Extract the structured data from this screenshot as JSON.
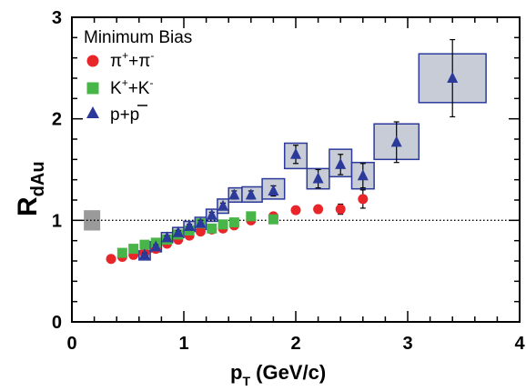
{
  "chart_data": {
    "type": "scatter",
    "legend_title": "Minimum Bias",
    "xlabel_main": "p",
    "xlabel_sub": "T",
    "xlabel_units": " (GeV/c)",
    "ylabel_main": "R",
    "ylabel_sub": "dAu",
    "xlim": [
      0,
      4
    ],
    "ylim": [
      0,
      3
    ],
    "x_ticks": [
      "0",
      "1",
      "2",
      "3",
      "4"
    ],
    "y_ticks": [
      "0",
      "1",
      "2",
      "3"
    ],
    "reference_line_y": 1,
    "normalization_box": {
      "x": 0.18,
      "y": 1.0,
      "half_height": 0.1
    },
    "series": [
      {
        "name": "π⁺+π⁻",
        "legend_base": "π",
        "legend_sup1": "+",
        "legend_mid": "+π",
        "legend_sup2": "-",
        "marker": "circle",
        "color": "#e8262a",
        "points": [
          {
            "x": 0.35,
            "y": 0.62
          },
          {
            "x": 0.45,
            "y": 0.64
          },
          {
            "x": 0.55,
            "y": 0.66
          },
          {
            "x": 0.65,
            "y": 0.68
          },
          {
            "x": 0.75,
            "y": 0.72
          },
          {
            "x": 0.85,
            "y": 0.77
          },
          {
            "x": 0.95,
            "y": 0.81
          },
          {
            "x": 1.05,
            "y": 0.85
          },
          {
            "x": 1.15,
            "y": 0.89
          },
          {
            "x": 1.25,
            "y": 0.91
          },
          {
            "x": 1.35,
            "y": 0.92
          },
          {
            "x": 1.45,
            "y": 0.95
          },
          {
            "x": 1.6,
            "y": 1.0
          },
          {
            "x": 1.8,
            "y": 1.04
          },
          {
            "x": 2.0,
            "y": 1.1
          },
          {
            "x": 2.2,
            "y": 1.11
          },
          {
            "x": 2.4,
            "y": 1.11,
            "err": 0.05
          },
          {
            "x": 2.6,
            "y": 1.21,
            "err": 0.09
          }
        ]
      },
      {
        "name": "K⁺+K⁻",
        "legend_base": "K",
        "legend_sup1": "+",
        "legend_mid": "+K",
        "legend_sup2": "-",
        "marker": "square",
        "color": "#48b548",
        "points": [
          {
            "x": 0.45,
            "y": 0.68
          },
          {
            "x": 0.55,
            "y": 0.72
          },
          {
            "x": 0.65,
            "y": 0.76
          },
          {
            "x": 0.75,
            "y": 0.78
          },
          {
            "x": 0.85,
            "y": 0.81
          },
          {
            "x": 0.95,
            "y": 0.86
          },
          {
            "x": 1.05,
            "y": 0.9
          },
          {
            "x": 1.15,
            "y": 0.97
          },
          {
            "x": 1.25,
            "y": 0.92
          },
          {
            "x": 1.35,
            "y": 0.96
          },
          {
            "x": 1.45,
            "y": 0.98
          },
          {
            "x": 1.6,
            "y": 1.04
          },
          {
            "x": 1.8,
            "y": 1.01
          }
        ]
      },
      {
        "name": "p+p̄",
        "legend_base": "p+p",
        "marker": "triangle",
        "color": "#2b3a9a",
        "points": [
          {
            "x": 0.65,
            "y": 0.66,
            "err": 0.02,
            "sys": [
              0.6,
              0.7,
              0.61,
              0.7
            ]
          },
          {
            "x": 0.75,
            "y": 0.74,
            "err": 0.02,
            "sys": [
              0.7,
              0.8,
              0.69,
              0.79
            ]
          },
          {
            "x": 0.85,
            "y": 0.83,
            "err": 0.02,
            "sys": [
              0.8,
              0.9,
              0.78,
              0.88
            ]
          },
          {
            "x": 0.95,
            "y": 0.88,
            "err": 0.02,
            "sys": [
              0.9,
              1.0,
              0.83,
              0.93
            ]
          },
          {
            "x": 1.05,
            "y": 0.94,
            "err": 0.02,
            "sys": [
              1.0,
              1.1,
              0.89,
              0.99
            ]
          },
          {
            "x": 1.15,
            "y": 0.97,
            "err": 0.03,
            "sys": [
              1.1,
              1.2,
              0.91,
              1.03
            ]
          },
          {
            "x": 1.25,
            "y": 1.05,
            "err": 0.03,
            "sys": [
              1.2,
              1.3,
              0.99,
              1.11
            ]
          },
          {
            "x": 1.35,
            "y": 1.14,
            "err": 0.03,
            "sys": [
              1.3,
              1.4,
              1.07,
              1.21
            ]
          },
          {
            "x": 1.45,
            "y": 1.25,
            "err": 0.04,
            "sys": [
              1.4,
              1.52,
              1.18,
              1.32
            ]
          },
          {
            "x": 1.6,
            "y": 1.25,
            "err": 0.04,
            "sys": [
              1.52,
              1.7,
              1.18,
              1.33
            ]
          },
          {
            "x": 1.8,
            "y": 1.29,
            "err": 0.05,
            "sys": [
              1.7,
              1.9,
              1.21,
              1.41
            ]
          },
          {
            "x": 2.0,
            "y": 1.65,
            "err": 0.09,
            "sys": [
              1.9,
              2.1,
              1.51,
              1.76
            ]
          },
          {
            "x": 2.2,
            "y": 1.41,
            "err": 0.09,
            "sys": [
              2.1,
              2.3,
              1.31,
              1.51
            ]
          },
          {
            "x": 2.4,
            "y": 1.55,
            "err": 0.1,
            "sys": [
              2.3,
              2.5,
              1.43,
              1.7
            ]
          },
          {
            "x": 2.6,
            "y": 1.44,
            "err": 0.12,
            "sys": [
              2.5,
              2.7,
              1.31,
              1.57
            ]
          },
          {
            "x": 2.9,
            "y": 1.77,
            "err": 0.2,
            "sys": [
              2.7,
              3.1,
              1.6,
              1.95
            ]
          },
          {
            "x": 3.4,
            "y": 2.4,
            "err": 0.38,
            "sys": [
              3.1,
              3.7,
              2.16,
              2.64
            ]
          }
        ]
      }
    ]
  }
}
